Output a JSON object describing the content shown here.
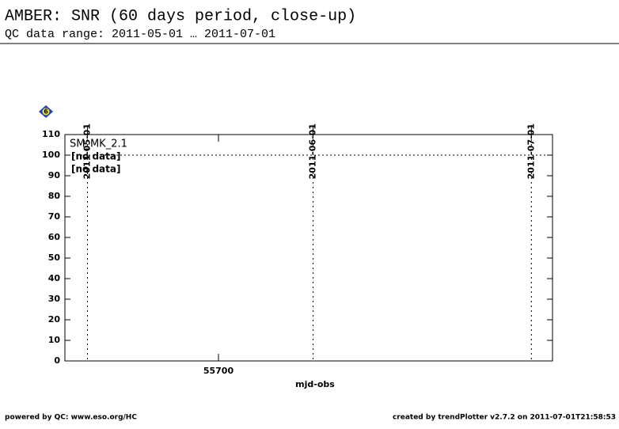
{
  "chart_data": {
    "type": "line",
    "title": "AMBER: SNR (60 days period, close-up)",
    "subtitle": "QC data range: 2011-05-01 … 2011-07-01",
    "badge": "6",
    "legend_title": "SM_MK_2.1",
    "x": [],
    "series": [
      {
        "name": "[no data]",
        "color": "#000000",
        "values": []
      },
      {
        "name": "[no data]",
        "color": "#e00000",
        "values": []
      }
    ],
    "xlabel": "mjd-obs",
    "xlim": [
      55678.9,
      55745.9
    ],
    "xticks": [
      55700
    ],
    "ylim": [
      0,
      110
    ],
    "yticks": [
      0,
      10,
      20,
      30,
      40,
      50,
      60,
      70,
      80,
      90,
      100,
      110
    ],
    "reference_line": 100,
    "date_markers": [
      {
        "value": 55682,
        "label": "2011-05-01"
      },
      {
        "value": 55713,
        "label": "2011-06-01"
      },
      {
        "value": 55743,
        "label": "2011-07-01"
      }
    ],
    "footer_left": "powered by QC: www.eso.org/HC",
    "footer_right": "created by trendPlotter v2.7.2 on 2011-07-01T21:58:53"
  }
}
